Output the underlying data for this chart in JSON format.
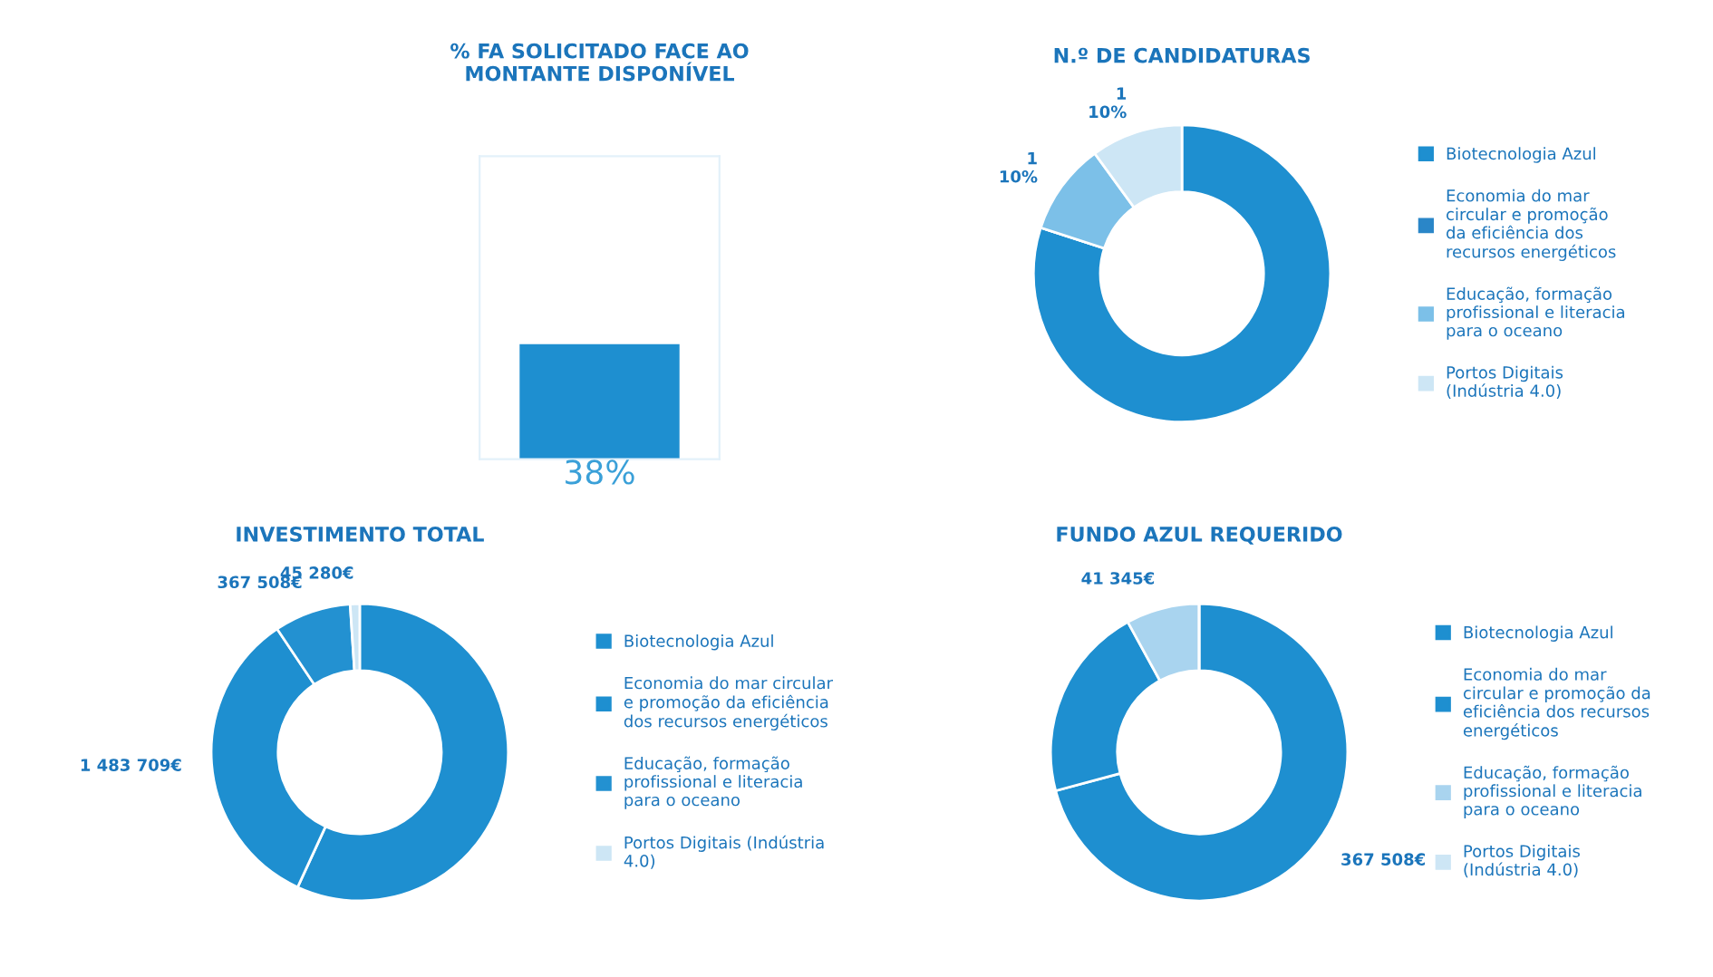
{
  "chart_data": [
    {
      "type": "bar",
      "title": "% FA SOLICITADO FACE AO\nMONTANTE DISPONÍVEL",
      "categories": [
        null
      ],
      "values": [
        38
      ],
      "value_labels": [
        "38%"
      ],
      "color": "#1e8fd0",
      "ylim": [
        0,
        100
      ],
      "tick_labels": false
    },
    {
      "type": "donut",
      "title": "N.º DE CANDIDATURAS",
      "categories": [
        "Biotecnologia Azul",
        "Economia do mar\ncircular e promoção\nda eficiência dos\nrecursos energéticos",
        "Educação, formação\nprofissional e literacia\npara o oceano",
        "Portos Digitais\n(Indústria 4.0)"
      ],
      "values": [
        8,
        0,
        1,
        1
      ],
      "value_labels": [
        null,
        null,
        "1\n10%",
        "1\n10%"
      ],
      "colors": [
        "#1e8fd0",
        "#2a86c8",
        "#7cc0e8",
        "#cde6f5"
      ],
      "legend": "right"
    },
    {
      "type": "donut",
      "title": "INVESTIMENTO TOTAL",
      "categories": [
        "Biotecnologia Azul",
        "Economia do mar circular\ne promoção da eficiência\ndos recursos energéticos",
        "Educação, formação\nprofissional e literacia\npara o oceano",
        "Portos Digitais (Indústria\n4.0)"
      ],
      "values": [
        2500000,
        1483709,
        367508,
        45280
      ],
      "value_labels": [
        null,
        "1 483 709€",
        "367 508€",
        "45 280€"
      ],
      "colors": [
        "#1e8fd0",
        "#1e8fd0",
        "#2391d1",
        "#cde6f5"
      ],
      "legend": "right"
    },
    {
      "type": "donut",
      "title": "FUNDO AZUL REQUERIDO",
      "categories": [
        "Biotecnologia Azul",
        "Economia do mar\ncircular e promoção da\neficiência dos recursos\nenergéticos",
        "Educação, formação\nprofissional e literacia\npara o oceano",
        "Portos Digitais\n(Indústria 4.0)"
      ],
      "values": [
        367508,
        110000,
        41345,
        0
      ],
      "value_labels": [
        "367 508€",
        null,
        "41 345€",
        null
      ],
      "colors": [
        "#1e8fd0",
        "#1e8fd0",
        "#a9d4ef",
        "#cde6f5"
      ],
      "legend": "right"
    }
  ]
}
